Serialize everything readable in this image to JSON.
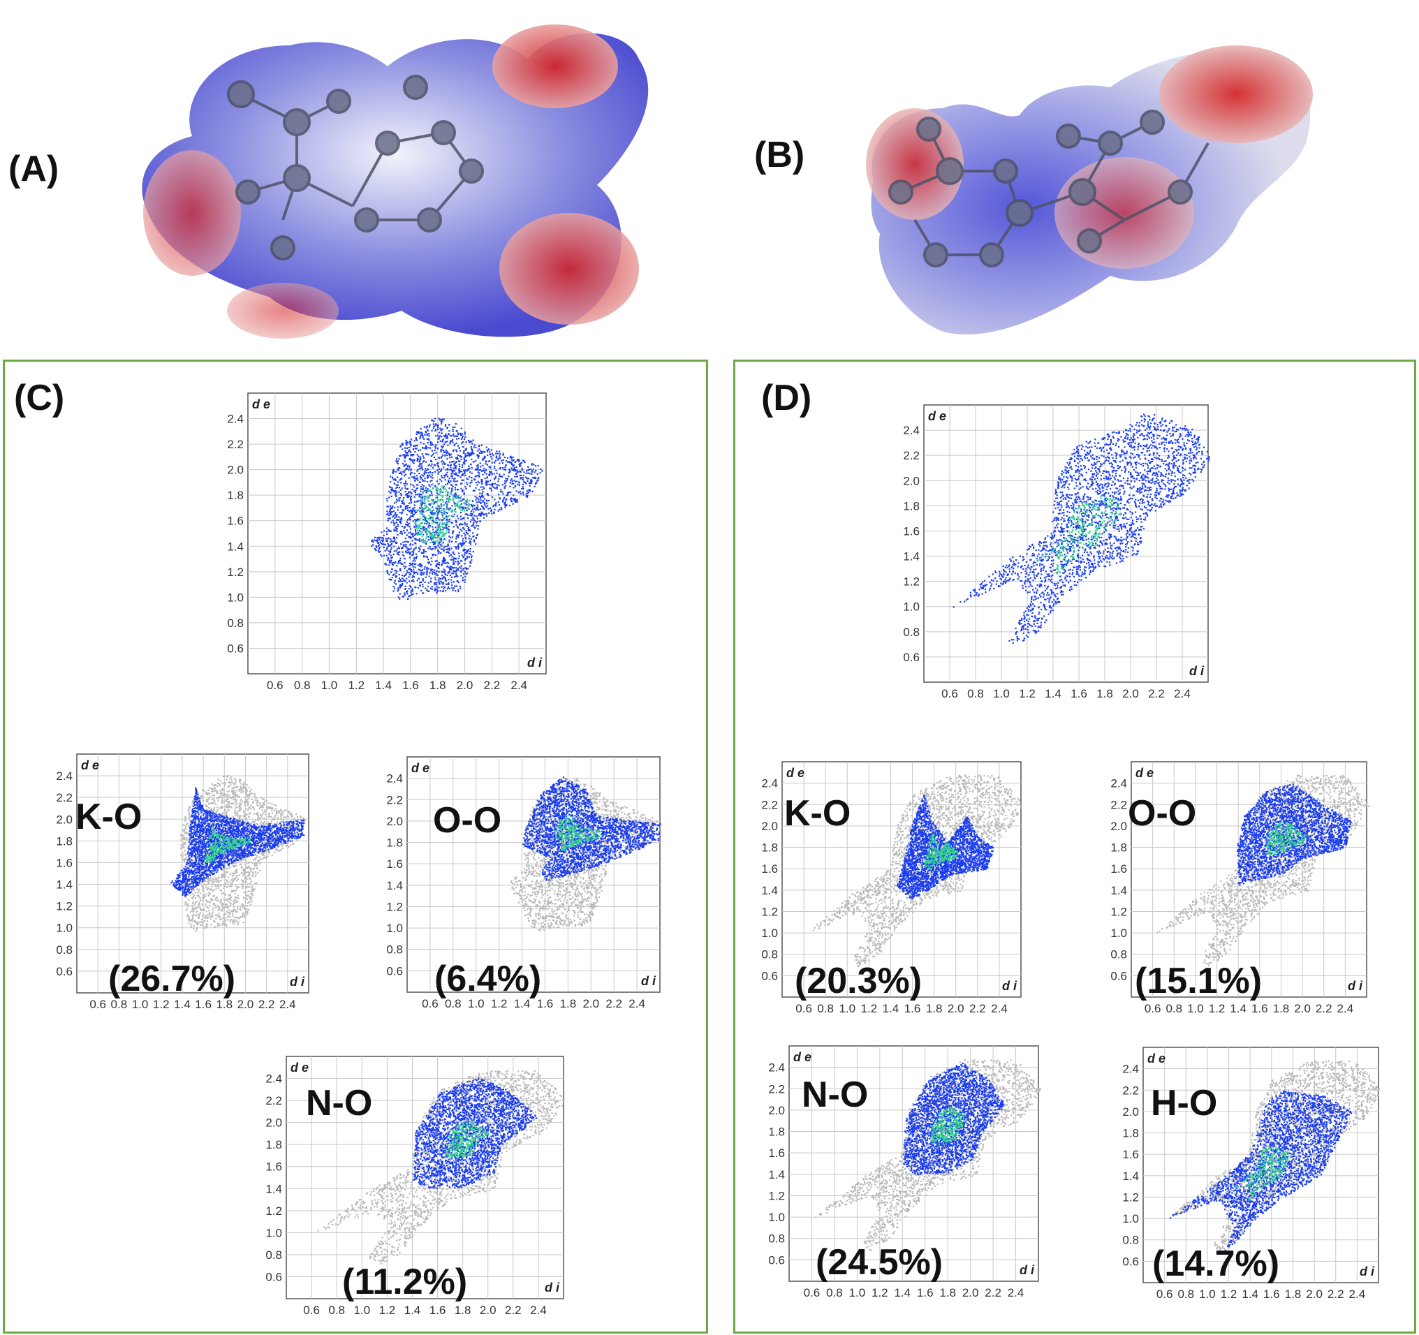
{
  "panels": {
    "A": "(A)",
    "B": "(B)",
    "C": "(C)",
    "D": "(D)"
  },
  "colors": {
    "box_border": "#6aaa45",
    "surface_positive": "#3d3ad0",
    "surface_negative": "#d42020",
    "fingerprint_points": "#1a3cf0",
    "fingerprint_high_density": "#33d48a",
    "grey_background_points": "#b8b8b8",
    "grid": "#c8c8c8"
  },
  "chart_data": [
    {
      "id": "C-full",
      "type": "scatter",
      "panel": "C",
      "title": "",
      "xlabel": "d i",
      "ylabel": "d e",
      "xticks": [
        "0.6",
        "0.8",
        "1.0",
        "1.2",
        "1.4",
        "1.6",
        "1.8",
        "2.0",
        "2.2",
        "2.4"
      ],
      "yticks": [
        "2.4",
        "2.2",
        "2.0",
        "1.8",
        "1.6",
        "1.4",
        "1.2",
        "1.0",
        "0.8",
        "0.6"
      ],
      "xlim": [
        0.4,
        2.6
      ],
      "ylim": [
        0.4,
        2.6
      ],
      "percentage": "",
      "contact": "",
      "highlight_envelope": [
        [
          1.28,
          1.42
        ],
        [
          1.42,
          1.58
        ],
        [
          1.42,
          1.88
        ],
        [
          1.52,
          2.2
        ],
        [
          1.78,
          2.42
        ],
        [
          1.92,
          2.38
        ],
        [
          2.12,
          2.2
        ],
        [
          2.58,
          2.02
        ],
        [
          2.48,
          1.8
        ],
        [
          2.12,
          1.62
        ],
        [
          2.06,
          1.35
        ],
        [
          1.98,
          1.05
        ],
        [
          1.62,
          1.02
        ],
        [
          1.54,
          0.97
        ],
        [
          1.47,
          1.03
        ],
        [
          1.39,
          1.32
        ],
        [
          1.28,
          1.42
        ]
      ],
      "grey_envelope": []
    },
    {
      "id": "C-KO",
      "type": "scatter",
      "panel": "C",
      "title": "",
      "xlabel": "d i",
      "ylabel": "d e",
      "xticks": [
        "0.6",
        "0.8",
        "1.0",
        "1.2",
        "1.4",
        "1.6",
        "1.8",
        "2.0",
        "2.2",
        "2.4"
      ],
      "yticks": [
        "2.4",
        "2.2",
        "2.0",
        "1.8",
        "1.6",
        "1.4",
        "1.2",
        "1.0",
        "0.8",
        "0.6"
      ],
      "xlim": [
        0.4,
        2.6
      ],
      "ylim": [
        0.4,
        2.6
      ],
      "contact": "K-O",
      "percentage": "(26.7%)",
      "highlight_envelope": [
        [
          1.28,
          1.42
        ],
        [
          1.44,
          1.6
        ],
        [
          1.46,
          1.88
        ],
        [
          1.52,
          2.3
        ],
        [
          1.6,
          2.1
        ],
        [
          1.76,
          2.05
        ],
        [
          2.1,
          1.95
        ],
        [
          2.55,
          2.0
        ],
        [
          2.55,
          1.85
        ],
        [
          2.2,
          1.72
        ],
        [
          1.9,
          1.62
        ],
        [
          1.6,
          1.45
        ],
        [
          1.42,
          1.28
        ],
        [
          1.28,
          1.42
        ]
      ],
      "grey_envelope": [
        [
          1.4,
          1.42
        ],
        [
          1.36,
          1.88
        ],
        [
          1.5,
          2.22
        ],
        [
          1.8,
          2.42
        ],
        [
          1.95,
          2.38
        ],
        [
          2.15,
          2.2
        ],
        [
          2.56,
          2.02
        ],
        [
          2.5,
          1.8
        ],
        [
          2.15,
          1.62
        ],
        [
          2.08,
          1.32
        ],
        [
          1.98,
          1.04
        ],
        [
          1.62,
          1.0
        ],
        [
          1.5,
          0.96
        ],
        [
          1.44,
          1.08
        ],
        [
          1.4,
          1.42
        ]
      ]
    },
    {
      "id": "C-OO",
      "type": "scatter",
      "panel": "C",
      "title": "",
      "xlabel": "d i",
      "ylabel": "d e",
      "xticks": [
        "0.6",
        "0.8",
        "1.0",
        "1.2",
        "1.4",
        "1.6",
        "1.8",
        "2.0",
        "2.2",
        "2.4"
      ],
      "yticks": [
        "2.4",
        "2.2",
        "2.0",
        "1.8",
        "1.6",
        "1.4",
        "1.2",
        "1.0",
        "0.8",
        "0.6"
      ],
      "xlim": [
        0.4,
        2.6
      ],
      "ylim": [
        0.4,
        2.6
      ],
      "contact": "O-O",
      "percentage": "(6.4%)",
      "highlight_envelope": [
        [
          1.4,
          1.78
        ],
        [
          1.42,
          1.92
        ],
        [
          1.55,
          2.25
        ],
        [
          1.75,
          2.42
        ],
        [
          1.95,
          2.3
        ],
        [
          2.05,
          2.05
        ],
        [
          2.6,
          1.98
        ],
        [
          2.58,
          1.82
        ],
        [
          2.1,
          1.6
        ],
        [
          1.6,
          1.44
        ],
        [
          1.56,
          1.52
        ],
        [
          1.62,
          1.66
        ],
        [
          1.4,
          1.78
        ]
      ],
      "grey_envelope": [
        [
          1.28,
          1.42
        ],
        [
          1.42,
          1.6
        ],
        [
          1.4,
          1.88
        ],
        [
          1.52,
          2.22
        ],
        [
          1.8,
          2.42
        ],
        [
          1.95,
          2.38
        ],
        [
          2.15,
          2.2
        ],
        [
          2.58,
          2.02
        ],
        [
          2.5,
          1.8
        ],
        [
          2.15,
          1.62
        ],
        [
          2.08,
          1.32
        ],
        [
          1.98,
          1.04
        ],
        [
          1.62,
          1.0
        ],
        [
          1.5,
          0.96
        ],
        [
          1.44,
          1.08
        ],
        [
          1.28,
          1.42
        ]
      ]
    },
    {
      "id": "C-NO",
      "type": "scatter",
      "panel": "C",
      "title": "",
      "xlabel": "d i",
      "ylabel": "d e",
      "xticks": [
        "0.6",
        "0.8",
        "1.0",
        "1.2",
        "1.4",
        "1.6",
        "1.8",
        "2.0",
        "2.2",
        "2.4"
      ],
      "yticks": [
        "2.4",
        "2.2",
        "2.0",
        "1.8",
        "1.6",
        "1.4",
        "1.2",
        "1.0",
        "0.8",
        "0.6"
      ],
      "xlim": [
        0.4,
        2.6
      ],
      "ylim": [
        0.4,
        2.6
      ],
      "contact": "N-O",
      "percentage": "(11.2%)",
      "highlight_envelope": [
        [
          1.4,
          1.48
        ],
        [
          1.42,
          1.92
        ],
        [
          1.62,
          2.28
        ],
        [
          1.92,
          2.42
        ],
        [
          2.15,
          2.3
        ],
        [
          2.4,
          2.05
        ],
        [
          2.1,
          1.8
        ],
        [
          2.05,
          1.55
        ],
        [
          1.8,
          1.42
        ],
        [
          1.52,
          1.4
        ],
        [
          1.4,
          1.48
        ]
      ],
      "grey_envelope": [
        [
          0.62,
          1.0
        ],
        [
          1.05,
          1.38
        ],
        [
          1.38,
          1.6
        ],
        [
          1.45,
          2.0
        ],
        [
          1.6,
          2.3
        ],
        [
          1.95,
          2.48
        ],
        [
          2.4,
          2.48
        ],
        [
          2.62,
          2.2
        ],
        [
          2.45,
          1.92
        ],
        [
          2.12,
          1.72
        ],
        [
          2.05,
          1.4
        ],
        [
          1.7,
          1.3
        ],
        [
          1.45,
          1.05
        ],
        [
          1.3,
          0.82
        ],
        [
          1.1,
          0.68
        ],
        [
          1.05,
          0.78
        ],
        [
          1.2,
          1.05
        ],
        [
          1.1,
          1.2
        ],
        [
          0.62,
          1.0
        ]
      ]
    },
    {
      "id": "D-full",
      "type": "scatter",
      "panel": "D",
      "title": "",
      "xlabel": "d i",
      "ylabel": "d e",
      "xticks": [
        "0.6",
        "0.8",
        "1.0",
        "1.2",
        "1.4",
        "1.6",
        "1.8",
        "2.0",
        "2.2",
        "2.4"
      ],
      "yticks": [
        "2.4",
        "2.2",
        "2.0",
        "1.8",
        "1.6",
        "1.4",
        "1.2",
        "1.0",
        "0.8",
        "0.6"
      ],
      "xlim": [
        0.4,
        2.6
      ],
      "ylim": [
        0.4,
        2.6
      ],
      "percentage": "",
      "contact": "",
      "highlight_envelope": [
        [
          0.62,
          1.0
        ],
        [
          1.05,
          1.38
        ],
        [
          1.38,
          1.6
        ],
        [
          1.42,
          2.0
        ],
        [
          1.58,
          2.3
        ],
        [
          1.95,
          2.42
        ],
        [
          2.12,
          2.55
        ],
        [
          2.48,
          2.42
        ],
        [
          2.62,
          2.2
        ],
        [
          2.45,
          1.92
        ],
        [
          2.12,
          1.72
        ],
        [
          2.05,
          1.4
        ],
        [
          1.72,
          1.3
        ],
        [
          1.45,
          1.05
        ],
        [
          1.3,
          0.82
        ],
        [
          1.08,
          0.68
        ],
        [
          1.04,
          0.75
        ],
        [
          1.22,
          1.05
        ],
        [
          1.1,
          1.22
        ],
        [
          0.62,
          1.0
        ]
      ],
      "grey_envelope": []
    },
    {
      "id": "D-KO",
      "type": "scatter",
      "panel": "D",
      "title": "",
      "xlabel": "d i",
      "ylabel": "d e",
      "xticks": [
        "0.6",
        "0.8",
        "1.0",
        "1.2",
        "1.4",
        "1.6",
        "1.8",
        "2.0",
        "2.2",
        "2.4"
      ],
      "yticks": [
        "2.4",
        "2.2",
        "2.0",
        "1.8",
        "1.6",
        "1.4",
        "1.2",
        "1.0",
        "0.8",
        "0.6"
      ],
      "xlim": [
        0.4,
        2.6
      ],
      "ylim": [
        0.4,
        2.6
      ],
      "contact": "K-O",
      "percentage": "(20.3%)",
      "highlight_envelope": [
        [
          1.45,
          1.45
        ],
        [
          1.52,
          1.7
        ],
        [
          1.6,
          2.05
        ],
        [
          1.7,
          2.3
        ],
        [
          1.78,
          2.05
        ],
        [
          1.92,
          1.85
        ],
        [
          2.1,
          2.1
        ],
        [
          2.2,
          1.9
        ],
        [
          2.35,
          1.8
        ],
        [
          2.28,
          1.6
        ],
        [
          1.95,
          1.55
        ],
        [
          1.7,
          1.38
        ],
        [
          1.58,
          1.32
        ],
        [
          1.45,
          1.45
        ]
      ],
      "grey_envelope": [
        [
          0.62,
          1.0
        ],
        [
          1.05,
          1.38
        ],
        [
          1.38,
          1.6
        ],
        [
          1.45,
          2.0
        ],
        [
          1.6,
          2.3
        ],
        [
          1.95,
          2.48
        ],
        [
          2.4,
          2.48
        ],
        [
          2.62,
          2.2
        ],
        [
          2.45,
          1.92
        ],
        [
          2.12,
          1.72
        ],
        [
          2.05,
          1.4
        ],
        [
          1.7,
          1.3
        ],
        [
          1.45,
          1.05
        ],
        [
          1.3,
          0.82
        ],
        [
          1.1,
          0.68
        ],
        [
          1.05,
          0.78
        ],
        [
          1.2,
          1.05
        ],
        [
          1.1,
          1.2
        ],
        [
          0.62,
          1.0
        ]
      ]
    },
    {
      "id": "D-OO",
      "type": "scatter",
      "panel": "D",
      "title": "",
      "xlabel": "d i",
      "ylabel": "d e",
      "xticks": [
        "0.6",
        "0.8",
        "1.0",
        "1.2",
        "1.4",
        "1.6",
        "1.8",
        "2.0",
        "2.2",
        "2.4"
      ],
      "yticks": [
        "2.4",
        "2.2",
        "2.0",
        "1.8",
        "1.6",
        "1.4",
        "1.2",
        "1.0",
        "0.8",
        "0.6"
      ],
      "xlim": [
        0.4,
        2.6
      ],
      "ylim": [
        0.4,
        2.6
      ],
      "contact": "O-O",
      "percentage": "(15.1%)",
      "highlight_envelope": [
        [
          1.4,
          1.45
        ],
        [
          1.38,
          1.8
        ],
        [
          1.45,
          2.1
        ],
        [
          1.68,
          2.35
        ],
        [
          1.9,
          2.4
        ],
        [
          2.2,
          2.2
        ],
        [
          2.45,
          2.05
        ],
        [
          2.4,
          1.8
        ],
        [
          2.0,
          1.7
        ],
        [
          1.8,
          1.55
        ],
        [
          1.55,
          1.5
        ],
        [
          1.4,
          1.45
        ]
      ],
      "grey_envelope": [
        [
          0.62,
          1.0
        ],
        [
          1.05,
          1.38
        ],
        [
          1.38,
          1.6
        ],
        [
          1.45,
          2.0
        ],
        [
          1.6,
          2.3
        ],
        [
          1.95,
          2.48
        ],
        [
          2.4,
          2.48
        ],
        [
          2.62,
          2.2
        ],
        [
          2.45,
          1.92
        ],
        [
          2.12,
          1.72
        ],
        [
          2.05,
          1.4
        ],
        [
          1.7,
          1.3
        ],
        [
          1.45,
          1.05
        ],
        [
          1.3,
          0.82
        ],
        [
          1.1,
          0.68
        ],
        [
          1.05,
          0.78
        ],
        [
          1.2,
          1.05
        ],
        [
          1.1,
          1.2
        ],
        [
          0.62,
          1.0
        ]
      ]
    },
    {
      "id": "D-NO",
      "type": "scatter",
      "panel": "D",
      "title": "",
      "xlabel": "d i",
      "ylabel": "d e",
      "xticks": [
        "0.6",
        "0.8",
        "1.0",
        "1.2",
        "1.4",
        "1.6",
        "1.8",
        "2.0",
        "2.2",
        "2.4"
      ],
      "yticks": [
        "2.4",
        "2.2",
        "2.0",
        "1.8",
        "1.6",
        "1.4",
        "1.2",
        "1.0",
        "0.8",
        "0.6"
      ],
      "xlim": [
        0.4,
        2.6
      ],
      "ylim": [
        0.4,
        2.6
      ],
      "contact": "N-O",
      "percentage": "(24.5%)",
      "highlight_envelope": [
        [
          1.4,
          1.48
        ],
        [
          1.42,
          1.92
        ],
        [
          1.62,
          2.28
        ],
        [
          1.92,
          2.45
        ],
        [
          2.15,
          2.3
        ],
        [
          2.3,
          2.05
        ],
        [
          2.1,
          1.8
        ],
        [
          2.02,
          1.55
        ],
        [
          1.8,
          1.42
        ],
        [
          1.52,
          1.4
        ],
        [
          1.4,
          1.48
        ]
      ],
      "grey_envelope": [
        [
          0.62,
          1.0
        ],
        [
          1.05,
          1.38
        ],
        [
          1.38,
          1.6
        ],
        [
          1.45,
          2.0
        ],
        [
          1.6,
          2.3
        ],
        [
          1.95,
          2.48
        ],
        [
          2.4,
          2.48
        ],
        [
          2.62,
          2.2
        ],
        [
          2.45,
          1.92
        ],
        [
          2.12,
          1.72
        ],
        [
          2.05,
          1.4
        ],
        [
          1.7,
          1.3
        ],
        [
          1.45,
          1.05
        ],
        [
          1.3,
          0.82
        ],
        [
          1.1,
          0.68
        ],
        [
          1.05,
          0.78
        ],
        [
          1.2,
          1.05
        ],
        [
          1.1,
          1.2
        ],
        [
          0.62,
          1.0
        ]
      ]
    },
    {
      "id": "D-HO",
      "type": "scatter",
      "panel": "D",
      "title": "",
      "xlabel": "d i",
      "ylabel": "d e",
      "xticks": [
        "0.6",
        "0.8",
        "1.0",
        "1.2",
        "1.4",
        "1.6",
        "1.8",
        "2.0",
        "2.2",
        "2.4"
      ],
      "yticks": [
        "2.4",
        "2.2",
        "2.0",
        "1.8",
        "1.6",
        "1.4",
        "1.2",
        "1.0",
        "0.8",
        "0.6"
      ],
      "xlim": [
        0.4,
        2.6
      ],
      "ylim": [
        0.4,
        2.6
      ],
      "contact": "H-O",
      "percentage": "(14.7%)",
      "highlight_envelope": [
        [
          0.62,
          1.0
        ],
        [
          1.1,
          1.35
        ],
        [
          1.4,
          1.62
        ],
        [
          1.55,
          2.1
        ],
        [
          1.7,
          2.2
        ],
        [
          2.1,
          2.15
        ],
        [
          2.35,
          2.0
        ],
        [
          2.2,
          1.7
        ],
        [
          2.05,
          1.4
        ],
        [
          1.7,
          1.2
        ],
        [
          1.45,
          1.0
        ],
        [
          1.28,
          0.8
        ],
        [
          1.15,
          0.7
        ],
        [
          1.25,
          0.92
        ],
        [
          1.1,
          1.18
        ],
        [
          0.62,
          1.0
        ]
      ],
      "grey_envelope": [
        [
          0.62,
          1.0
        ],
        [
          1.05,
          1.38
        ],
        [
          1.38,
          1.6
        ],
        [
          1.45,
          2.0
        ],
        [
          1.6,
          2.3
        ],
        [
          1.95,
          2.48
        ],
        [
          2.4,
          2.48
        ],
        [
          2.62,
          2.2
        ],
        [
          2.45,
          1.92
        ],
        [
          2.12,
          1.72
        ],
        [
          2.05,
          1.4
        ],
        [
          1.7,
          1.3
        ],
        [
          1.45,
          1.05
        ],
        [
          1.3,
          0.82
        ],
        [
          1.1,
          0.68
        ],
        [
          1.05,
          0.78
        ],
        [
          1.2,
          1.05
        ],
        [
          1.1,
          1.2
        ],
        [
          0.62,
          1.0
        ]
      ]
    }
  ]
}
